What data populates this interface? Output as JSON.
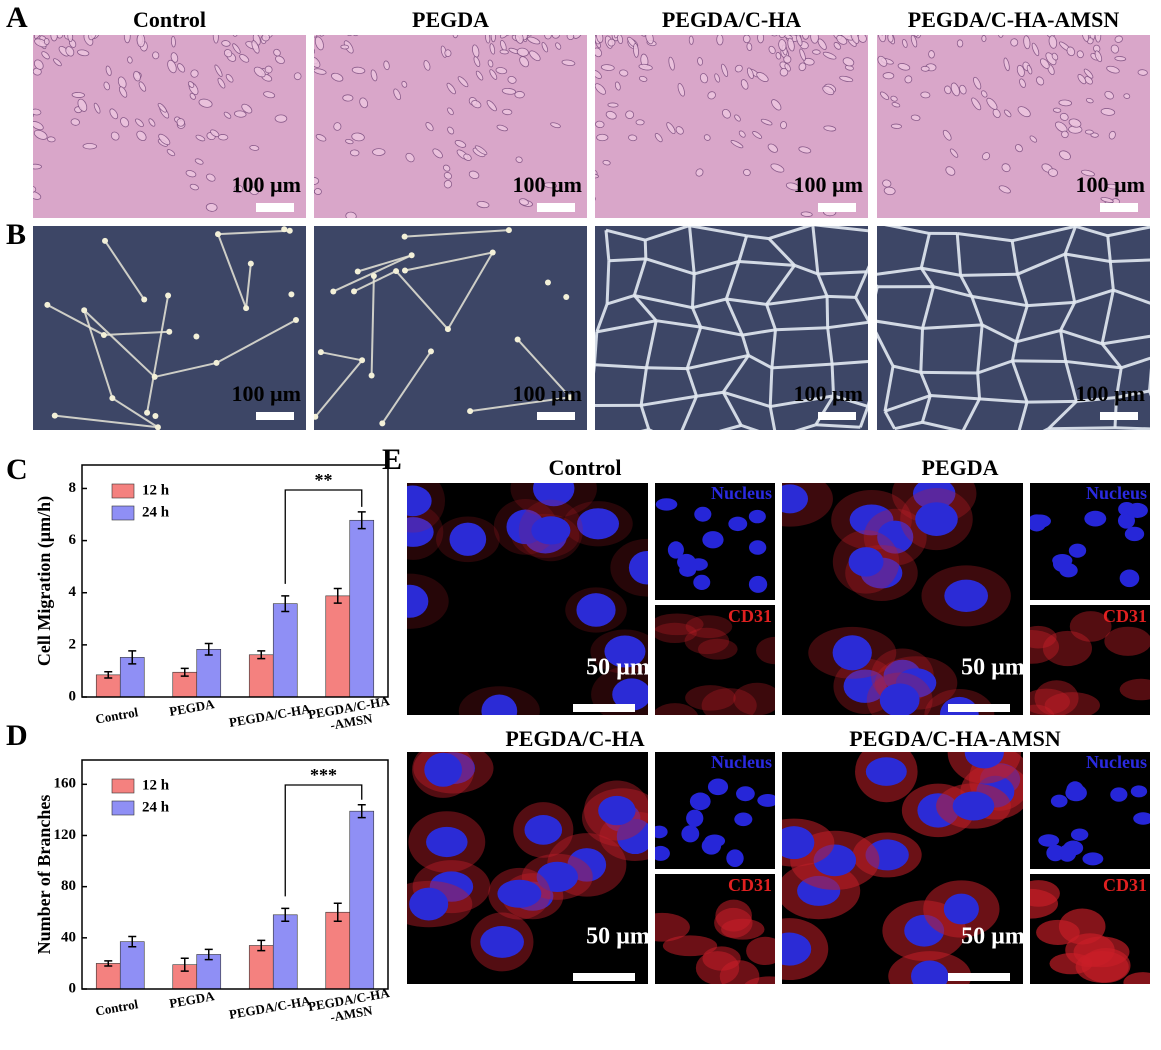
{
  "panel_labels": [
    "A",
    "B",
    "C",
    "D",
    "E"
  ],
  "groups": [
    "Control",
    "PEGDA",
    "PEGDA/C-HA",
    "PEGDA/C-HA-AMSN"
  ],
  "scale_bar_large": "100 µm",
  "scale_bar_small": "50 µm",
  "channels": {
    "nucleus": "Nucleus",
    "cd31": "CD31"
  },
  "chart_data": [
    {
      "type": "bar",
      "y_label": "Cell Migration (μm/h)",
      "categories": [
        "Control",
        "PEGDA",
        "PEGDA/C-HA",
        "PEGDA/C-HA\n-AMSN"
      ],
      "series": [
        {
          "name": "12 h",
          "color": "#f4817f",
          "values": [
            0.85,
            0.95,
            1.62,
            3.88
          ],
          "errors": [
            0.12,
            0.15,
            0.15,
            0.28
          ]
        },
        {
          "name": "24 h",
          "color": "#8f8ff5",
          "values": [
            1.52,
            1.83,
            3.58,
            6.78
          ],
          "errors": [
            0.25,
            0.22,
            0.3,
            0.32
          ]
        }
      ],
      "ylim": [
        0,
        8.9
      ],
      "yticks": [
        0,
        2,
        4,
        6,
        8
      ],
      "legend": "upper left",
      "annotation": "**"
    },
    {
      "type": "bar",
      "y_label": "Number of Branches",
      "categories": [
        "Control",
        "PEGDA",
        "PEGDA/C-HA",
        "PEGDA/C-HA\n-AMSN"
      ],
      "series": [
        {
          "name": "12 h",
          "color": "#f4817f",
          "values": [
            20,
            19,
            34,
            60
          ],
          "errors": [
            2,
            5,
            4,
            7
          ]
        },
        {
          "name": "24 h",
          "color": "#8f8ff5",
          "values": [
            37,
            27,
            58,
            139
          ],
          "errors": [
            4,
            4,
            5,
            5
          ]
        }
      ],
      "ylim": [
        0,
        179
      ],
      "yticks": [
        0,
        40,
        80,
        120,
        160
      ],
      "legend": "upper left",
      "annotation": "***"
    }
  ]
}
